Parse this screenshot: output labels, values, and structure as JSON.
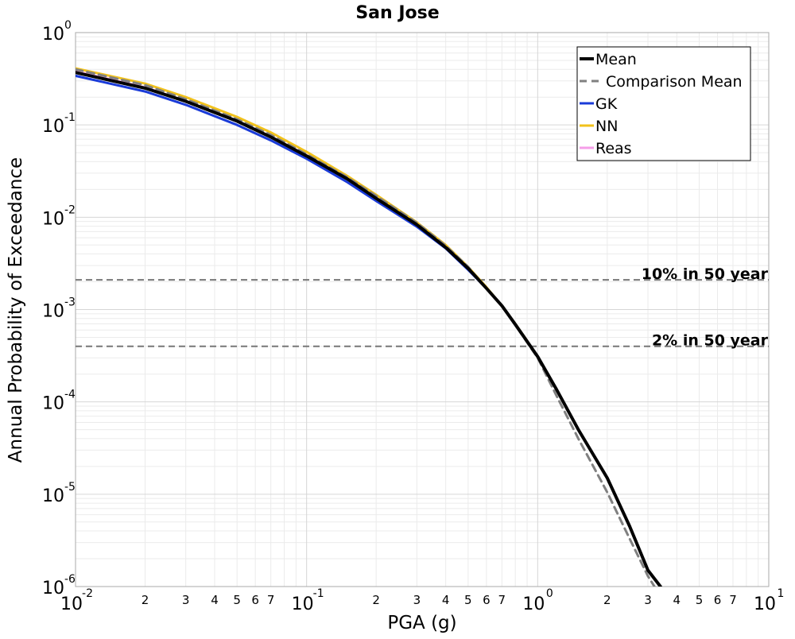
{
  "chart_data": {
    "type": "line",
    "title": "San Jose",
    "xlabel": "PGA (g)",
    "ylabel": "Annual Probability of Exceedance",
    "x_scale": "log",
    "y_scale": "log",
    "xlim": [
      0.01,
      10
    ],
    "ylim": [
      1e-06,
      1
    ],
    "grid": true,
    "legend_position": "top-right",
    "x_major_ticks": [
      {
        "value": 0.01,
        "base": "10",
        "exp": "-2"
      },
      {
        "value": 0.1,
        "base": "10",
        "exp": "-1"
      },
      {
        "value": 1,
        "base": "10",
        "exp": "0"
      },
      {
        "value": 10,
        "base": "10",
        "exp": "1"
      }
    ],
    "y_major_ticks": [
      {
        "value": 1,
        "base": "10",
        "exp": "0"
      },
      {
        "value": 0.1,
        "base": "10",
        "exp": "-1"
      },
      {
        "value": 0.01,
        "base": "10",
        "exp": "-2"
      },
      {
        "value": 0.001,
        "base": "10",
        "exp": "-3"
      },
      {
        "value": 0.0001,
        "base": "10",
        "exp": "-4"
      },
      {
        "value": 1e-05,
        "base": "10",
        "exp": "-5"
      },
      {
        "value": 1e-06,
        "base": "10",
        "exp": "-6"
      }
    ],
    "x_minor_labels": [
      "2",
      "3",
      "4",
      "5",
      "6",
      "7"
    ],
    "reference_lines": [
      {
        "label": "10% in 50 year",
        "y": 0.0021,
        "color": "#777777"
      },
      {
        "label": "2% in 50 year",
        "y": 0.0004,
        "color": "#777777"
      }
    ],
    "series": [
      {
        "name": "Mean",
        "color": "#000000",
        "style": "solid",
        "x": [
          0.01,
          0.02,
          0.03,
          0.05,
          0.07,
          0.1,
          0.15,
          0.2,
          0.3,
          0.4,
          0.5,
          0.6,
          0.7,
          0.8,
          1.0,
          1.2,
          1.5,
          2.0,
          2.5,
          3.0,
          3.4
        ],
        "y": [
          0.37,
          0.25,
          0.18,
          0.11,
          0.074,
          0.046,
          0.026,
          0.016,
          0.0083,
          0.0047,
          0.0028,
          0.0017,
          0.0011,
          0.00069,
          0.00031,
          0.00014,
          5e-05,
          1.5e-05,
          4.5e-06,
          1.5e-06,
          1e-06
        ]
      },
      {
        "name": "Comparison Mean",
        "color": "#808080",
        "style": "dashed",
        "x": [
          0.01,
          0.02,
          0.03,
          0.05,
          0.07,
          0.1,
          0.15,
          0.2,
          0.3,
          0.4,
          0.5,
          0.6,
          0.7,
          0.8,
          1.0,
          1.2,
          1.5,
          2.0,
          2.5,
          3.0,
          3.2
        ],
        "y": [
          0.4,
          0.27,
          0.19,
          0.115,
          0.078,
          0.048,
          0.027,
          0.017,
          0.0087,
          0.0049,
          0.0029,
          0.0017,
          0.0011,
          0.00068,
          0.0003,
          0.00012,
          4e-05,
          1.05e-05,
          3.3e-06,
          1.3e-06,
          1e-06
        ]
      },
      {
        "name": "GK",
        "color": "#1a3bd8",
        "style": "solid",
        "x": [
          0.01,
          0.02,
          0.03,
          0.05,
          0.07,
          0.1,
          0.15,
          0.2,
          0.3,
          0.4,
          0.5,
          0.6,
          0.7,
          0.8,
          0.9
        ],
        "y": [
          0.34,
          0.23,
          0.165,
          0.1,
          0.068,
          0.043,
          0.024,
          0.015,
          0.0079,
          0.0046,
          0.0027,
          0.0017,
          0.0011,
          0.00068,
          0.00045
        ]
      },
      {
        "name": "NN",
        "color": "#f2c21b",
        "style": "solid",
        "x": [
          0.01,
          0.02,
          0.03,
          0.05,
          0.07,
          0.1,
          0.15,
          0.2,
          0.3,
          0.4,
          0.5,
          0.6,
          0.7,
          0.8,
          0.9
        ],
        "y": [
          0.41,
          0.28,
          0.2,
          0.122,
          0.083,
          0.051,
          0.028,
          0.0175,
          0.0088,
          0.005,
          0.0029,
          0.00175,
          0.0011,
          0.0007,
          0.00046
        ]
      },
      {
        "name": "Reas",
        "color": "#f59ee8",
        "style": "solid",
        "x": [
          0.01,
          0.02,
          0.03,
          0.05,
          0.07,
          0.1,
          0.15,
          0.2,
          0.3,
          0.4,
          0.5,
          0.6,
          0.7,
          0.8,
          0.9
        ],
        "y": [
          0.38,
          0.255,
          0.182,
          0.111,
          0.075,
          0.047,
          0.0262,
          0.0162,
          0.0084,
          0.0048,
          0.0028,
          0.0017,
          0.0011,
          0.00069,
          0.00046
        ]
      }
    ]
  }
}
